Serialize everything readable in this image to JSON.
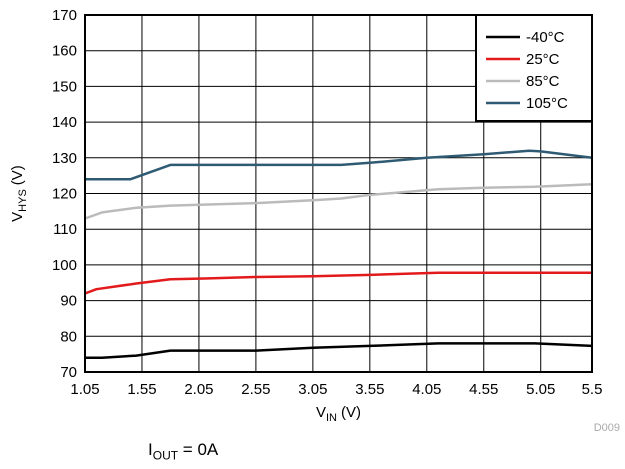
{
  "chart_data": {
    "type": "line",
    "xlabel": {
      "main": "V",
      "sub": "IN",
      "unit": "(V)"
    },
    "ylabel": {
      "main": "V",
      "sub": "HYS",
      "unit": "(V)"
    },
    "xlim": [
      1.05,
      5.5
    ],
    "ylim": [
      70,
      170
    ],
    "x_ticks": [
      "1.05",
      "1.55",
      "2.05",
      "2.55",
      "3.05",
      "3.55",
      "4.05",
      "4.55",
      "5.05",
      "5.5"
    ],
    "y_ticks": [
      "70",
      "80",
      "90",
      "100",
      "110",
      "120",
      "130",
      "140",
      "150",
      "160",
      "170"
    ],
    "grid": true,
    "legend_position": "top-right",
    "figure_id": "D009",
    "series": [
      {
        "name": "-40°C",
        "color": "#000000",
        "x": [
          1.05,
          1.2,
          1.5,
          1.8,
          2.1,
          2.55,
          3.05,
          3.55,
          4.15,
          4.55,
          5.0,
          5.5
        ],
        "y": [
          74,
          74,
          74.6,
          76,
          76,
          76,
          76.8,
          77.3,
          78,
          78,
          78,
          77.3
        ]
      },
      {
        "name": "25°C",
        "color": "#e31a1c",
        "x": [
          1.05,
          1.15,
          1.5,
          1.8,
          2.1,
          2.55,
          3.05,
          3.55,
          4.15,
          4.55,
          5.0,
          5.5
        ],
        "y": [
          92,
          93.2,
          94.8,
          96,
          96.2,
          96.6,
          96.8,
          97.2,
          97.8,
          97.8,
          97.8,
          97.8
        ]
      },
      {
        "name": "85°C",
        "color": "#bbbbbb",
        "x": [
          1.05,
          1.2,
          1.5,
          1.8,
          2.1,
          2.55,
          3.05,
          3.3,
          3.55,
          4.15,
          4.55,
          5.0,
          5.5
        ],
        "y": [
          113,
          114.7,
          116,
          116.6,
          116.9,
          117.3,
          118.1,
          118.6,
          119.6,
          121.2,
          121.6,
          121.9,
          122.6
        ]
      },
      {
        "name": "105°C",
        "color": "#2e5b73",
        "x": [
          1.05,
          1.45,
          1.8,
          2.1,
          2.55,
          3.3,
          3.55,
          4.05,
          4.55,
          4.95,
          5.05,
          5.5
        ],
        "y": [
          124,
          124,
          128,
          128,
          128,
          128,
          128.6,
          130,
          131,
          132,
          131.8,
          130
        ]
      }
    ]
  },
  "caption": {
    "main": "I",
    "sub": "OUT",
    "rest": " = 0A"
  }
}
